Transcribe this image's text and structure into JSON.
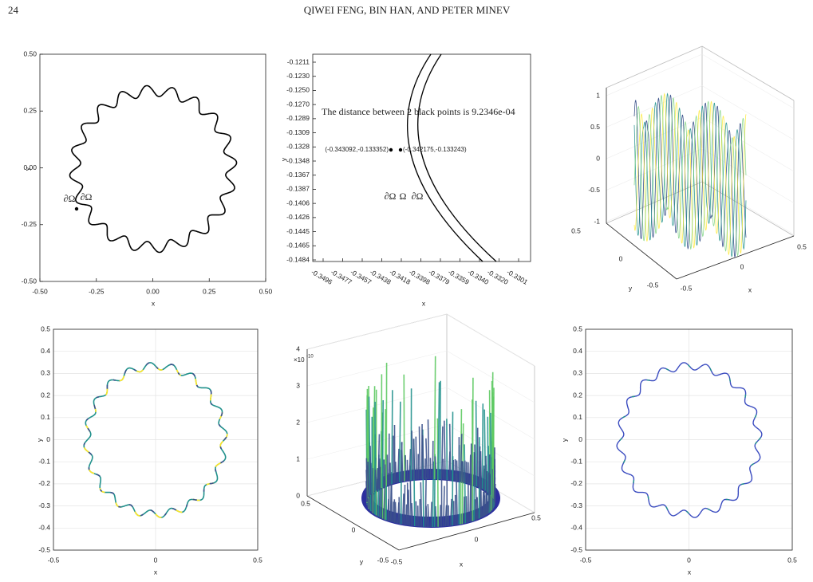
{
  "header": {
    "page_number": "24",
    "authors": "QIWEI FENG, BIN HAN, AND PETER MINEV"
  },
  "figures": [
    {
      "xticks": [
        "-0.50",
        "-0.25",
        "0.00",
        "0.25",
        "0.50"
      ],
      "yticks": [
        "0.50",
        "0.25",
        "0.00",
        "-0.25",
        "-0.50"
      ],
      "xlabel": "x",
      "ylabel": "y",
      "boundary_labels": [
        "∂Ω",
        "∂Ω"
      ]
    },
    {
      "xticks": [
        "-0.3496",
        "-0.3477",
        "-0.3457",
        "-0.3438",
        "-0.3418",
        "-0.3398",
        "-0.3379",
        "-0.3359",
        "-0.3340",
        "-0.3320",
        "-0.3301"
      ],
      "yticks": [
        "-0.1211",
        "-0.1230",
        "-0.1250",
        "-0.1270",
        "-0.1289",
        "-0.1309",
        "-0.1328",
        "-0.1348",
        "-0.1367",
        "-0.1387",
        "-0.1406",
        "-0.1426",
        "-0.1445",
        "-0.1465",
        "-0.1484"
      ],
      "xlabel": "x",
      "ylabel": "y",
      "annotation": "The distance between 2 black points is 9.2346e-04",
      "point_labels": [
        "(-0.343092,-0.133352)",
        "(-0.342175,-0.133243)"
      ],
      "boundary_labels": [
        "∂Ω",
        "Ω",
        "∂Ω"
      ]
    },
    {
      "zticks": [
        "1",
        "0.5",
        "0",
        "-0.5",
        "-1"
      ],
      "yticks": [
        "0.5",
        "0",
        "-0.5"
      ],
      "xticks": [
        "-0.5",
        "0",
        "0.5"
      ],
      "xlabel": "x",
      "ylabel": "y"
    },
    {
      "xticks": [
        "-0.5",
        "0",
        "0.5"
      ],
      "yticks": [
        "0.5",
        "0.4",
        "0.3",
        "0.2",
        "0.1",
        "0",
        "-0.1",
        "-0.2",
        "-0.3",
        "-0.4",
        "-0.5"
      ],
      "xlabel": "x",
      "ylabel": "y"
    },
    {
      "z_scale": {
        "base": "×10",
        "exponent": "-10"
      },
      "zticks": [
        "4",
        "3",
        "2",
        "1",
        "0"
      ],
      "yticks": [
        "0.5",
        "0",
        "-0.5"
      ],
      "xticks": [
        "-0.5",
        "0",
        "0.5"
      ],
      "xlabel": "x",
      "ylabel": "y"
    },
    {
      "xticks": [
        "-0.5",
        "0",
        "0.5"
      ],
      "yticks": [
        "0.5",
        "0.4",
        "0.3",
        "0.2",
        "0.1",
        "0",
        "-0.1",
        "-0.2",
        "-0.3",
        "-0.4",
        "-0.5"
      ],
      "xlabel": "x",
      "ylabel": "y"
    }
  ]
}
